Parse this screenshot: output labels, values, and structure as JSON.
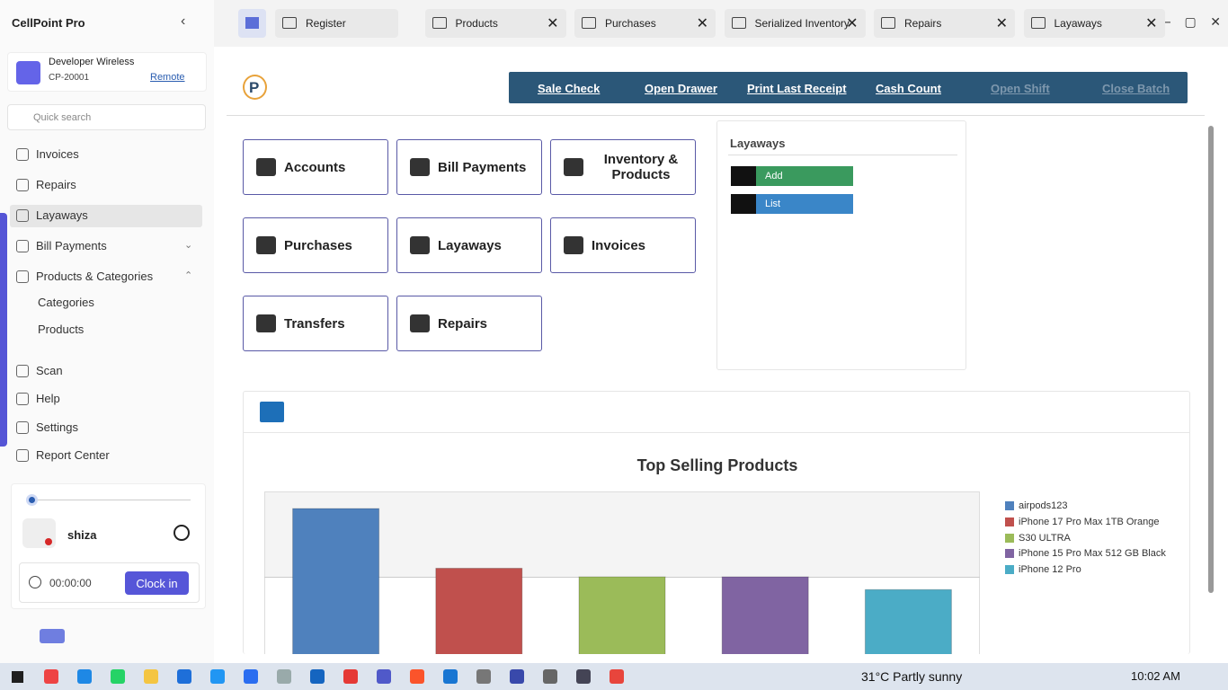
{
  "app": {
    "title": "CellPoint Pro"
  },
  "tabs": [
    "Register",
    "Products",
    "Purchases",
    "Serialized Inventory",
    "Repairs",
    "Layaways"
  ],
  "store": {
    "name": "Developer Wireless",
    "code": "CP-20001",
    "link": "Remote"
  },
  "search_placeholder": "Quick search",
  "nav": [
    "Invoices",
    "Repairs",
    "Layaways",
    "Bill Payments",
    "Products & Categories",
    "Categories",
    "Products",
    "Scan",
    "Help",
    "Settings",
    "Report Center"
  ],
  "user": {
    "name": "shiza",
    "timer": "00:00:00",
    "button": "Clock in"
  },
  "toolbar": [
    "Sale Check",
    "Open Drawer",
    "Print Last Receipt",
    "Cash Count",
    "Open Shift",
    "Close Batch"
  ],
  "tiles": [
    "Accounts",
    "Bill Payments",
    "Inventory & Products",
    "Purchases",
    "Layaways",
    "Invoices",
    "Transfers",
    "Repairs"
  ],
  "panel": {
    "title": "Layaways",
    "buttons": [
      "Add",
      "List"
    ]
  },
  "chart_data": {
    "type": "bar",
    "title": "Top Selling Products",
    "categories": [
      "airpods123",
      "iPhone 17 Pro Max 1TB Orange",
      "S30 ULTRA",
      "iPhone 15 Pro Max 512 GB Black",
      "iPhone 12 Pro"
    ],
    "values": [
      18,
      11,
      10,
      10,
      8.5
    ],
    "colors": [
      "#4f81bd",
      "#c0504d",
      "#9bbb59",
      "#8064a2",
      "#4bacc6"
    ],
    "ylim": [
      0,
      20
    ]
  },
  "taskbar": {
    "weather": "31°C  Partly sunny",
    "time": "10:02 AM"
  }
}
